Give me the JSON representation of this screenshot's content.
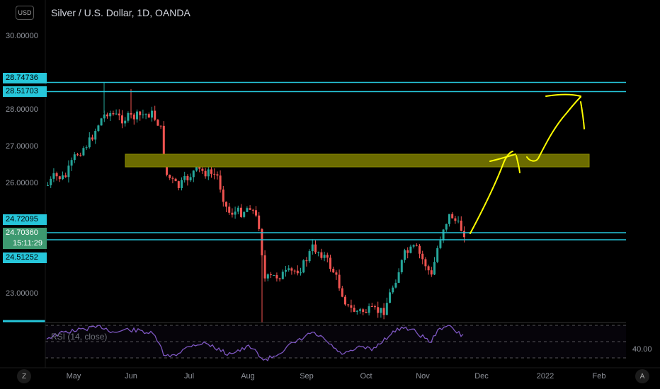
{
  "header": {
    "currency": "USD",
    "title": "Silver / U.S. Dollar, 1D, OANDA"
  },
  "price_axis": {
    "ticks": [
      {
        "label": "30.00000",
        "value": 30
      },
      {
        "label": "28.00000",
        "value": 28
      },
      {
        "label": "27.00000",
        "value": 27
      },
      {
        "label": "26.00000",
        "value": 26
      },
      {
        "label": "23.00000",
        "value": 23
      }
    ]
  },
  "price_labels": {
    "upper_top": "28.74736",
    "upper_bottom": "28.51703",
    "lower_top": "24.72095",
    "current_price": "24.70360",
    "countdown": "15:11:29",
    "lower_bottom": "24.51252"
  },
  "time_axis": {
    "labels": [
      "May",
      "Jun",
      "Jul",
      "Aug",
      "Sep",
      "Oct",
      "Nov",
      "Dec",
      "2022",
      "Feb"
    ]
  },
  "rsi": {
    "legend": "RSI (14, close)",
    "level_label": "40.00"
  },
  "controls": {
    "zoom_button": "Z",
    "auto_button": "A"
  },
  "colors": {
    "background": "#000000",
    "up_candle": "#26a69a",
    "down_candle": "#ef5350",
    "horizontal_line": "#26c6da",
    "zone_fill": "#6b6b00",
    "drawing": "#ffff00",
    "rsi_line": "#7e57c2",
    "current_price_bg": "#3d9970"
  }
}
